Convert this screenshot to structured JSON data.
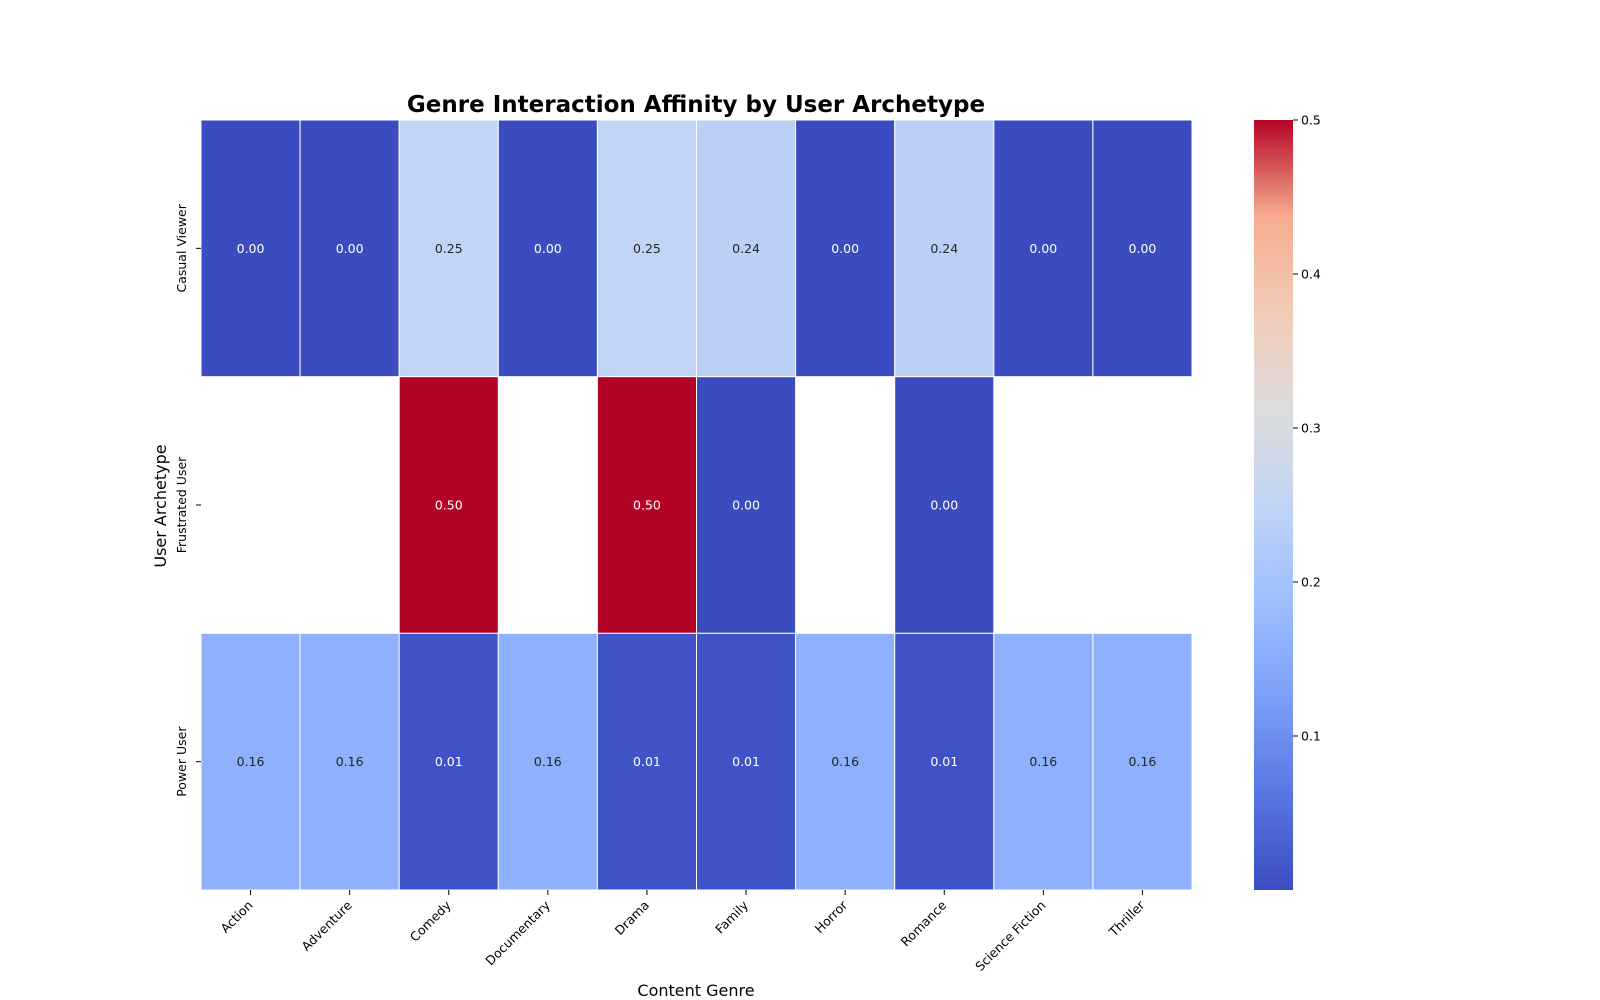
{
  "chart_data": {
    "type": "heatmap",
    "title": "Genre Interaction Affinity by User Archetype",
    "xlabel": "Content Genre",
    "ylabel": "User Archetype",
    "x_categories": [
      "Action",
      "Adventure",
      "Comedy",
      "Documentary",
      "Drama",
      "Family",
      "Horror",
      "Romance",
      "Science Fiction",
      "Thriller"
    ],
    "y_categories": [
      "Casual Viewer",
      "Frustrated User",
      "Power User"
    ],
    "values": [
      [
        0.0,
        0.0,
        0.25,
        0.0,
        0.25,
        0.24,
        0.0,
        0.24,
        0.0,
        0.0
      ],
      [
        null,
        null,
        0.5,
        null,
        0.5,
        0.0,
        null,
        0.0,
        null,
        null
      ],
      [
        0.16,
        0.16,
        0.01,
        0.16,
        0.01,
        0.01,
        0.16,
        0.01,
        0.16,
        0.16
      ]
    ],
    "colormap": "coolwarm",
    "vmin": 0.0,
    "vmax": 0.5,
    "colorbar_ticks": [
      0.1,
      0.2,
      0.3,
      0.4,
      0.5
    ],
    "colorbar_tick_labels": [
      "0.1",
      "0.2",
      "0.3",
      "0.4",
      "0.5"
    ],
    "annotation_format": "0.00",
    "legend": "colorbar-right"
  }
}
